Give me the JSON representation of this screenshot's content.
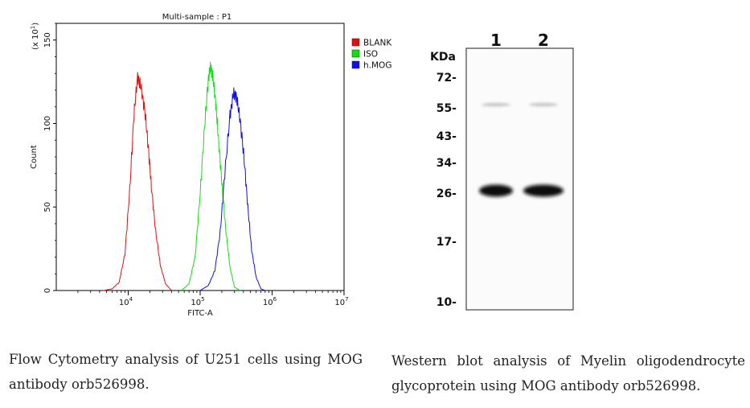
{
  "flow": {
    "title": "Multi-sample : P1",
    "scale_note": "(x 10",
    "scale_exp": "1",
    "scale_close": ")",
    "xlabel": "FITC-A",
    "ylabel": "Count",
    "caption_line1": "Flow Cytometry analysis of U251 cells using MOG",
    "caption_line2": "antibody orb526998."
  },
  "blot": {
    "unit_label": "KDa",
    "lane_labels": [
      "1",
      "2"
    ],
    "markers": [
      "72-",
      "55-",
      "43-",
      "34-",
      "26-",
      "17-",
      "10-"
    ],
    "caption_line1": "Western blot analysis of Myelin oligodendrocyte",
    "caption_line2": "glycoprotein using MOG antibody orb526998."
  },
  "chart_data": [
    {
      "type": "line",
      "title": "Multi-sample : P1",
      "xlabel": "FITC-A",
      "ylabel": "Count",
      "x_scale": "log",
      "xlim": [
        1000,
        10000000
      ],
      "ylim": [
        0,
        160
      ],
      "y_multiplier_label": "(x 10^1)",
      "x_ticks": [
        {
          "base": "10",
          "exp": "4",
          "value": 10000
        },
        {
          "base": "10",
          "exp": "5",
          "value": 100000
        },
        {
          "base": "10",
          "exp": "6",
          "value": 1000000
        },
        {
          "base": "10",
          "exp": "7",
          "value": 10000000
        }
      ],
      "y_ticks": [
        0,
        50,
        100,
        150
      ],
      "legend_position": "top-right",
      "series": [
        {
          "name": "BLANK",
          "color": "#e01010",
          "points": [
            [
              4500,
              0
            ],
            [
              6000,
              1
            ],
            [
              7500,
              5
            ],
            [
              9000,
              22
            ],
            [
              10500,
              60
            ],
            [
              12000,
              105
            ],
            [
              13500,
              128
            ],
            [
              15000,
              122
            ],
            [
              17000,
              108
            ],
            [
              19000,
              86
            ],
            [
              21000,
              62
            ],
            [
              24000,
              36
            ],
            [
              28000,
              15
            ],
            [
              33000,
              4
            ],
            [
              40000,
              0
            ]
          ]
        },
        {
          "name": "ISO",
          "color": "#10e010",
          "points": [
            [
              55000,
              0
            ],
            [
              70000,
              4
            ],
            [
              85000,
              20
            ],
            [
              100000,
              58
            ],
            [
              115000,
              98
            ],
            [
              130000,
              127
            ],
            [
              140000,
              134
            ],
            [
              150000,
              128
            ],
            [
              165000,
              112
            ],
            [
              180000,
              90
            ],
            [
              200000,
              65
            ],
            [
              225000,
              38
            ],
            [
              260000,
              14
            ],
            [
              300000,
              2
            ],
            [
              360000,
              0
            ]
          ]
        },
        {
          "name": "h.MOG",
          "color": "#1010e0",
          "points": [
            [
              100000,
              0
            ],
            [
              130000,
              3
            ],
            [
              160000,
              12
            ],
            [
              190000,
              35
            ],
            [
              220000,
              70
            ],
            [
              260000,
              105
            ],
            [
              290000,
              118
            ],
            [
              320000,
              116
            ],
            [
              360000,
              102
            ],
            [
              410000,
              78
            ],
            [
              460000,
              50
            ],
            [
              520000,
              24
            ],
            [
              600000,
              8
            ],
            [
              700000,
              1
            ],
            [
              800000,
              0
            ]
          ]
        }
      ]
    },
    {
      "type": "table",
      "title": "",
      "lanes": [
        "1",
        "2"
      ],
      "marker_kda": [
        72,
        55,
        43,
        34,
        26,
        17,
        10
      ],
      "bands": [
        {
          "lane": "1",
          "kda": 26,
          "intensity": "strong"
        },
        {
          "lane": "2",
          "kda": 26,
          "intensity": "strong"
        },
        {
          "lane": "1",
          "kda": 55,
          "intensity": "faint"
        },
        {
          "lane": "2",
          "kda": 55,
          "intensity": "faint"
        }
      ]
    }
  ]
}
